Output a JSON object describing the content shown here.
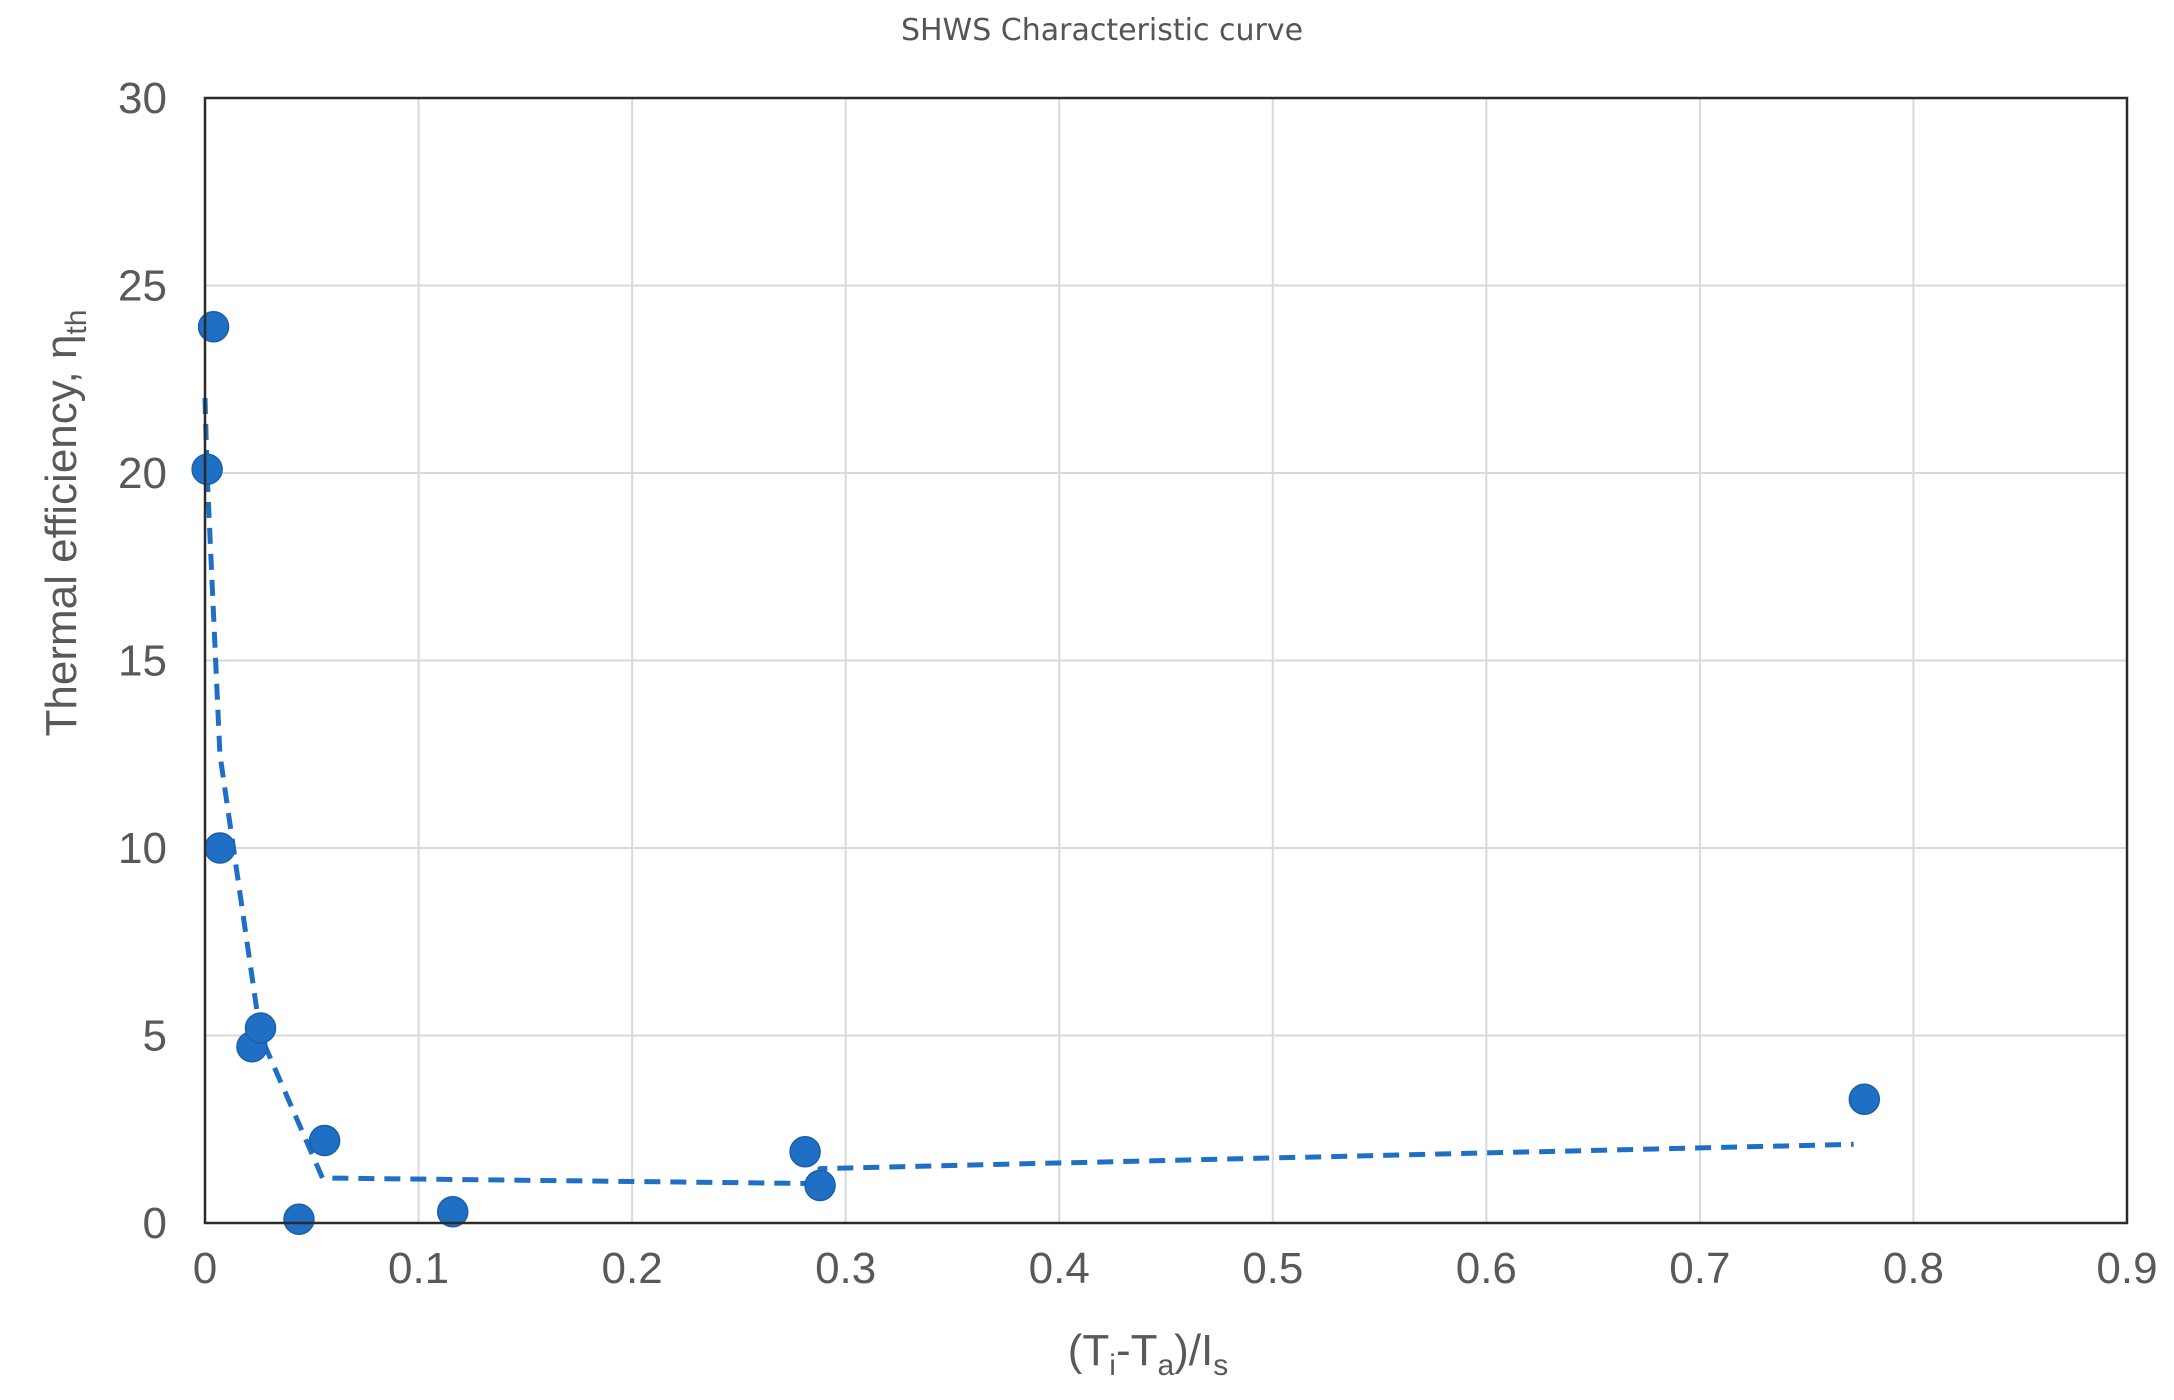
{
  "chart_data": {
    "type": "scatter",
    "title": "SHWS Characteristic curve",
    "xlabel": {
      "prefix": "(T",
      "sub1": "i",
      "mid": "-T",
      "sub2": "a",
      "suffix": ")/I",
      "sub3": "s"
    },
    "ylabel": {
      "main": "Thermal efficiency, η",
      "sub": "th"
    },
    "xlim": [
      0,
      0.9
    ],
    "ylim": [
      0,
      30
    ],
    "x_ticks": [
      "0",
      "0.1",
      "0.2",
      "0.3",
      "0.4",
      "0.5",
      "0.6",
      "0.7",
      "0.8",
      "0.9"
    ],
    "y_ticks": [
      "0",
      "5",
      "10",
      "15",
      "20",
      "25",
      "30"
    ],
    "grid": true,
    "legend": "none",
    "series": [
      {
        "kind": "points",
        "color": "#1f6fc5",
        "points": [
          {
            "x": 0.004,
            "y": 23.9
          },
          {
            "x": 0.001,
            "y": 20.1
          },
          {
            "x": 0.007,
            "y": 10.0
          },
          {
            "x": 0.022,
            "y": 4.7
          },
          {
            "x": 0.026,
            "y": 5.2
          },
          {
            "x": 0.044,
            "y": 0.1
          },
          {
            "x": 0.056,
            "y": 2.2
          },
          {
            "x": 0.116,
            "y": 0.3
          },
          {
            "x": 0.281,
            "y": 1.9
          },
          {
            "x": 0.288,
            "y": 1.0
          },
          {
            "x": 0.777,
            "y": 3.3
          }
        ]
      },
      {
        "kind": "dashed-line",
        "color": "#1f6fc5",
        "points": [
          {
            "x": 0.0,
            "y": 22.0
          },
          {
            "x": 0.001,
            "y": 20.0
          },
          {
            "x": 0.007,
            "y": 12.5
          },
          {
            "x": 0.026,
            "y": 5.0
          },
          {
            "x": 0.055,
            "y": 1.2
          },
          {
            "x": 0.288,
            "y": 1.05
          },
          {
            "x": 0.288,
            "y": 1.45
          },
          {
            "x": 0.772,
            "y": 2.1
          }
        ]
      }
    ]
  }
}
